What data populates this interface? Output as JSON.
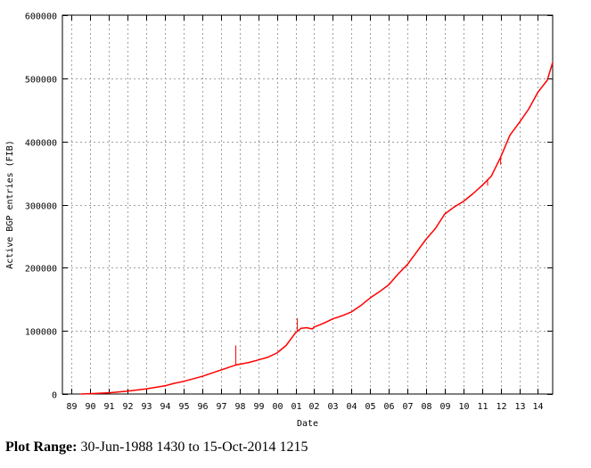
{
  "chart_data": {
    "type": "line",
    "xlabel": "Date",
    "ylabel": "Active BGP entries (FIB)",
    "ylim": [
      0,
      600000
    ],
    "y_ticks": [
      "0",
      "100000",
      "200000",
      "300000",
      "400000",
      "500000",
      "600000"
    ],
    "x_tick_labels": [
      "89",
      "90",
      "91",
      "92",
      "93",
      "94",
      "95",
      "96",
      "97",
      "98",
      "99",
      "00",
      "01",
      "02",
      "03",
      "04",
      "05",
      "06",
      "07",
      "08",
      "09",
      "10",
      "11",
      "12",
      "13",
      "14"
    ],
    "grid": true,
    "series": [
      {
        "color": "#ff0000",
        "x": [
          1989.5,
          1990.0,
          1991.0,
          1992.0,
          1993.0,
          1994.0,
          1994.5,
          1995.0,
          1996.0,
          1997.0,
          1997.8,
          1998.5,
          1999.0,
          1999.5,
          2000.0,
          2000.5,
          2001.0,
          2001.3,
          2001.6,
          2001.9,
          2002.0,
          2002.5,
          2003.0,
          2003.5,
          2004.0,
          2004.5,
          2005.0,
          2005.5,
          2006.0,
          2006.5,
          2007.0,
          2007.5,
          2008.0,
          2008.5,
          2009.0,
          2009.5,
          2010.0,
          2010.5,
          2011.0,
          2011.5,
          2012.0,
          2012.5,
          2013.0,
          2013.5,
          2014.0,
          2014.5,
          2014.79
        ],
        "y": [
          0,
          500,
          2000,
          4500,
          8000,
          13000,
          17000,
          20000,
          28000,
          38000,
          46000,
          50000,
          54000,
          58000,
          65000,
          77000,
          97000,
          104000,
          105000,
          103000,
          106000,
          112000,
          119000,
          124000,
          130000,
          140000,
          152000,
          162000,
          173000,
          190000,
          205000,
          225000,
          245000,
          262000,
          285000,
          296000,
          305000,
          317000,
          330000,
          345000,
          375000,
          410000,
          430000,
          451000,
          478000,
          497000,
          525000
        ]
      }
    ],
    "spikes": [
      {
        "x": 1997.8,
        "y": 77000
      },
      {
        "x": 2001.1,
        "y": 120000
      },
      {
        "x": 2011.3,
        "y": 330000
      },
      {
        "x": 2012.0,
        "y": 363000
      }
    ],
    "plot_range": {
      "label": "Plot Range",
      "value": "30-Jun-1988 1430 to 15-Oct-2014 1215"
    }
  }
}
